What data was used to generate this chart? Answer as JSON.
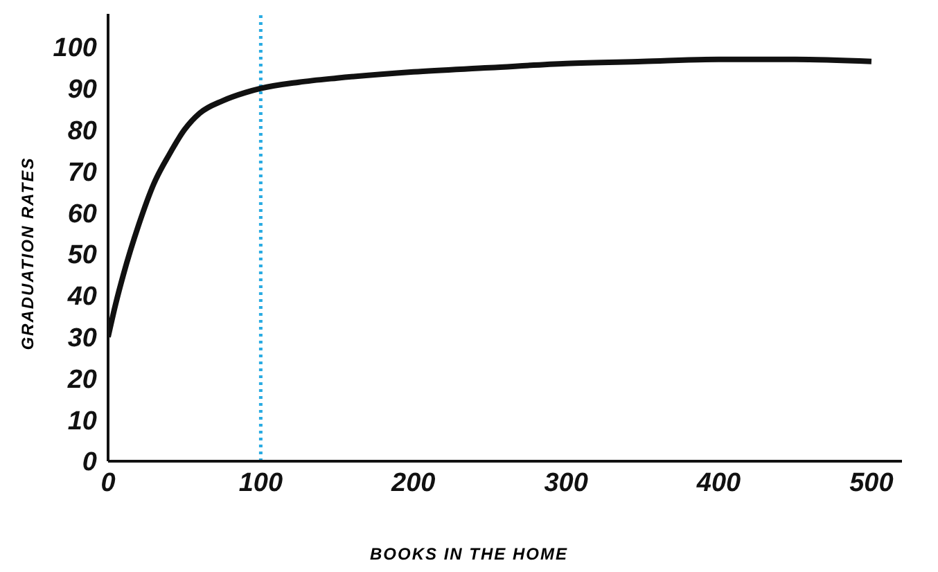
{
  "chart_data": {
    "type": "line",
    "xlabel": "BOOKS IN THE HOME",
    "ylabel": "GRADUATION RATES",
    "x": [
      0,
      5,
      10,
      20,
      30,
      40,
      50,
      60,
      75,
      90,
      100,
      125,
      150,
      200,
      250,
      300,
      350,
      400,
      450,
      500
    ],
    "series": [
      {
        "color": "#111111",
        "values": [
          30,
          38,
          45,
          57,
          67,
          74,
          80,
          84,
          87,
          89,
          90,
          91.5,
          92.5,
          94,
          95,
          96,
          96.5,
          97,
          97,
          96.5
        ]
      }
    ],
    "xlim": [
      0,
      520
    ],
    "xticks": [
      0,
      100,
      200,
      300,
      400,
      500
    ],
    "ylim": [
      0,
      108
    ],
    "yticks": [
      0,
      10,
      20,
      30,
      40,
      50,
      60,
      70,
      80,
      90,
      100
    ],
    "ref_lines": [
      {
        "axis": "x",
        "value": 100,
        "color": "#29abe2",
        "line_style": "dotted"
      }
    ],
    "grid": false,
    "legend": false,
    "marker": "none",
    "line_style": "solid"
  }
}
